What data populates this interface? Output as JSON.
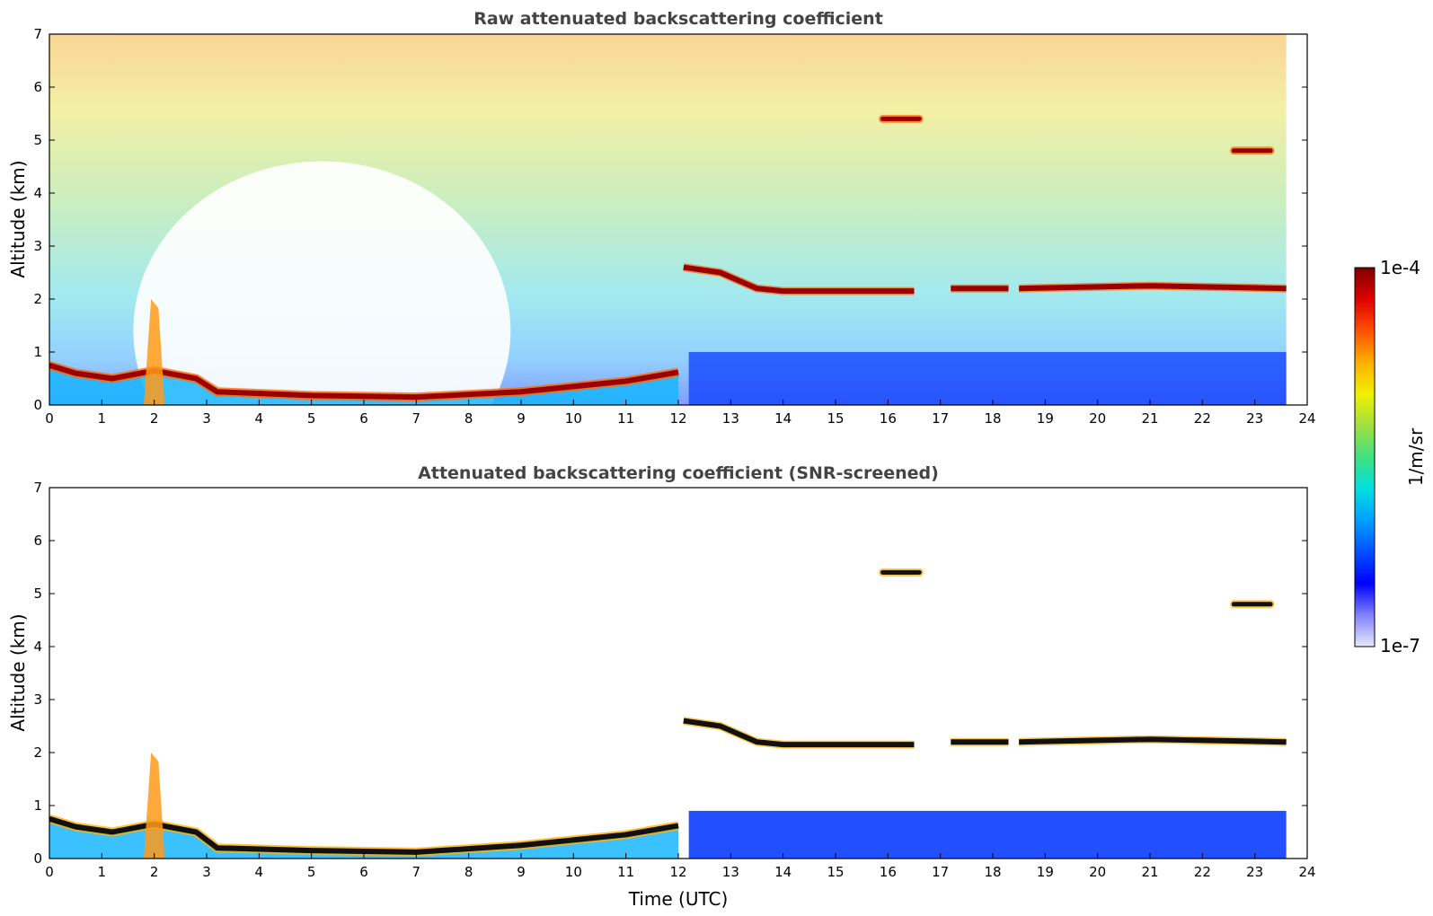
{
  "chart_data": [
    {
      "type": "heatmap",
      "title": "Raw attenuated backscattering coefficient",
      "xlabel": "",
      "ylabel": "Altitude (km)",
      "xlim": [
        0,
        24
      ],
      "ylim": [
        0,
        7
      ],
      "xticks": [
        "0",
        "1",
        "2",
        "3",
        "4",
        "5",
        "6",
        "7",
        "8",
        "9",
        "10",
        "11",
        "12",
        "13",
        "14",
        "15",
        "16",
        "17",
        "18",
        "19",
        "20",
        "21",
        "22",
        "23",
        "24"
      ],
      "yticks": [
        "0",
        "1",
        "2",
        "3",
        "4",
        "5",
        "6",
        "7"
      ],
      "data_end_hour": 23.6,
      "features": [
        {
          "kind": "boundary_layer",
          "points": [
            [
              0,
              0.75
            ],
            [
              0.5,
              0.6
            ],
            [
              1.2,
              0.5
            ],
            [
              2.0,
              0.65
            ],
            [
              2.8,
              0.5
            ],
            [
              3.2,
              0.25
            ],
            [
              5.0,
              0.18
            ],
            [
              7.0,
              0.15
            ],
            [
              9.0,
              0.25
            ],
            [
              11.0,
              0.45
            ],
            [
              12.0,
              0.62
            ]
          ]
        },
        {
          "kind": "cloud_layer",
          "points": [
            [
              12.1,
              2.6
            ],
            [
              12.8,
              2.5
            ],
            [
              13.5,
              2.2
            ],
            [
              14.0,
              2.15
            ],
            [
              16.5,
              2.15
            ]
          ]
        },
        {
          "kind": "cloud_layer",
          "points": [
            [
              17.2,
              2.2
            ],
            [
              18.3,
              2.2
            ]
          ]
        },
        {
          "kind": "cloud_layer",
          "points": [
            [
              18.5,
              2.2
            ],
            [
              21.0,
              2.25
            ],
            [
              23.6,
              2.2
            ]
          ]
        },
        {
          "kind": "cloud_patch",
          "x": [
            15.9,
            16.6
          ],
          "y": 5.4
        },
        {
          "kind": "cloud_patch",
          "x": [
            22.6,
            23.3
          ],
          "y": 4.8
        },
        {
          "kind": "aerosol_plume",
          "x": [
            1.8,
            2.2
          ],
          "ytop": 2.0
        }
      ]
    },
    {
      "type": "heatmap",
      "title": "Attenuated backscattering coefficient (SNR-screened)",
      "xlabel": "Time (UTC)",
      "ylabel": "Altitude (km)",
      "xlim": [
        0,
        24
      ],
      "ylim": [
        0,
        7
      ],
      "xticks": [
        "0",
        "1",
        "2",
        "3",
        "4",
        "5",
        "6",
        "7",
        "8",
        "9",
        "10",
        "11",
        "12",
        "13",
        "14",
        "15",
        "16",
        "17",
        "18",
        "19",
        "20",
        "21",
        "22",
        "23",
        "24"
      ],
      "yticks": [
        "0",
        "1",
        "2",
        "3",
        "4",
        "5",
        "6",
        "7"
      ],
      "data_end_hour": 23.6,
      "features": [
        {
          "kind": "boundary_layer",
          "points": [
            [
              0,
              0.75
            ],
            [
              0.5,
              0.6
            ],
            [
              1.2,
              0.5
            ],
            [
              2.0,
              0.65
            ],
            [
              2.8,
              0.5
            ],
            [
              3.2,
              0.2
            ],
            [
              5.0,
              0.15
            ],
            [
              7.0,
              0.12
            ],
            [
              9.0,
              0.25
            ],
            [
              11.0,
              0.45
            ],
            [
              12.0,
              0.62
            ]
          ]
        },
        {
          "kind": "cloud_layer",
          "points": [
            [
              12.1,
              2.6
            ],
            [
              12.8,
              2.5
            ],
            [
              13.5,
              2.2
            ],
            [
              14.0,
              2.15
            ],
            [
              16.5,
              2.15
            ]
          ]
        },
        {
          "kind": "cloud_layer",
          "points": [
            [
              17.2,
              2.2
            ],
            [
              18.3,
              2.2
            ]
          ]
        },
        {
          "kind": "cloud_layer",
          "points": [
            [
              18.5,
              2.2
            ],
            [
              21.0,
              2.25
            ],
            [
              23.6,
              2.2
            ]
          ]
        },
        {
          "kind": "cloud_patch",
          "x": [
            15.9,
            16.6
          ],
          "y": 5.4
        },
        {
          "kind": "cloud_patch",
          "x": [
            22.6,
            23.3
          ],
          "y": 4.8
        },
        {
          "kind": "aerosol_plume",
          "x": [
            1.8,
            2.2
          ],
          "ytop": 2.0
        }
      ]
    }
  ],
  "colorbar": {
    "max_label": "1e-4",
    "min_label": "1e-7",
    "label": "1/m/sr",
    "colors": [
      "#e8e8f8",
      "#8080ff",
      "#0000ff",
      "#0050ff",
      "#00a0ff",
      "#00e0e0",
      "#40e080",
      "#a0e040",
      "#f0f000",
      "#ffb000",
      "#ff5000",
      "#e00000",
      "#800000"
    ]
  }
}
